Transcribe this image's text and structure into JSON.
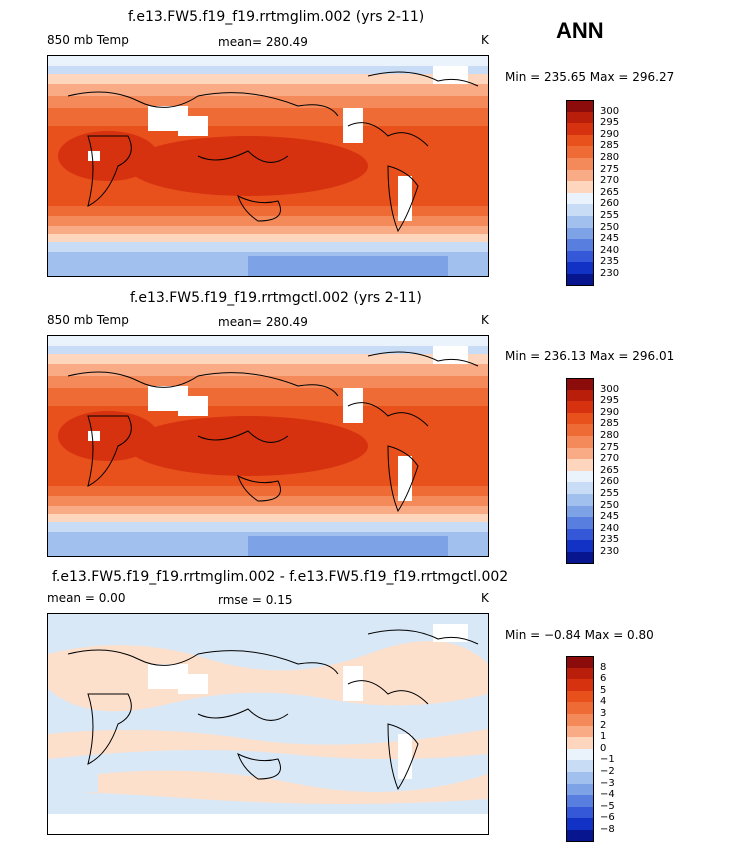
{
  "season": "ANN",
  "chart_data": [
    {
      "type": "heatmap",
      "title": "f.e13.FW5.f19_f19.rrtmglim.002 (yrs 2-11)",
      "field": "850 mb Temp",
      "stat_label": "mean=",
      "stat_value": "280.49",
      "units": "K",
      "range_text": "Min = 235.65 Max = 296.27",
      "min": 235.65,
      "max": 296.27,
      "levels": [
        "300",
        "295",
        "290",
        "285",
        "280",
        "275",
        "270",
        "265",
        "260",
        "255",
        "250",
        "245",
        "240",
        "235",
        "230"
      ],
      "colors": [
        "#8c0b0b",
        "#b81e0a",
        "#d7320f",
        "#e8501c",
        "#ef6b36",
        "#f48a5a",
        "#f9ab86",
        "#fdd6bd",
        "#eaf2fb",
        "#c8dcf5",
        "#a2c0ee",
        "#7ea2e6",
        "#587fe0",
        "#3558d8",
        "#1232c6",
        "#07158f"
      ]
    },
    {
      "type": "heatmap",
      "title": "f.e13.FW5.f19_f19.rrtmgctl.002 (yrs 2-11)",
      "field": "850 mb Temp",
      "stat_label": "mean=",
      "stat_value": "280.49",
      "units": "K",
      "range_text": "Min = 236.13 Max = 296.01",
      "min": 236.13,
      "max": 296.01,
      "levels": [
        "300",
        "295",
        "290",
        "285",
        "280",
        "275",
        "270",
        "265",
        "260",
        "255",
        "250",
        "245",
        "240",
        "235",
        "230"
      ],
      "colors": [
        "#8c0b0b",
        "#b81e0a",
        "#d7320f",
        "#e8501c",
        "#ef6b36",
        "#f48a5a",
        "#f9ab86",
        "#fdd6bd",
        "#eaf2fb",
        "#c8dcf5",
        "#a2c0ee",
        "#7ea2e6",
        "#587fe0",
        "#3558d8",
        "#1232c6",
        "#07158f"
      ]
    },
    {
      "type": "heatmap",
      "title": "f.e13.FW5.f19_f19.rrtmglim.002 - f.e13.FW5.f19_f19.rrtmgctl.002",
      "field_label": "mean =",
      "field_value": "0.00",
      "stat_label": "rmse =",
      "stat_value": "0.15",
      "units": "K",
      "range_text": "Min =  −0.84 Max =   0.80",
      "min": -0.84,
      "max": 0.8,
      "levels": [
        "8",
        "6",
        "5",
        "4",
        "3",
        "2",
        "1",
        "0",
        "−1",
        "−2",
        "−3",
        "−4",
        "−5",
        "−6",
        "−8"
      ],
      "colors": [
        "#8c0b0b",
        "#b81e0a",
        "#d7320f",
        "#e8501c",
        "#ef6b36",
        "#f48a5a",
        "#f9ab86",
        "#fdd6bd",
        "#eaf2fb",
        "#c8dcf5",
        "#a2c0ee",
        "#7ea2e6",
        "#587fe0",
        "#3558d8",
        "#1232c6",
        "#07158f"
      ]
    }
  ]
}
